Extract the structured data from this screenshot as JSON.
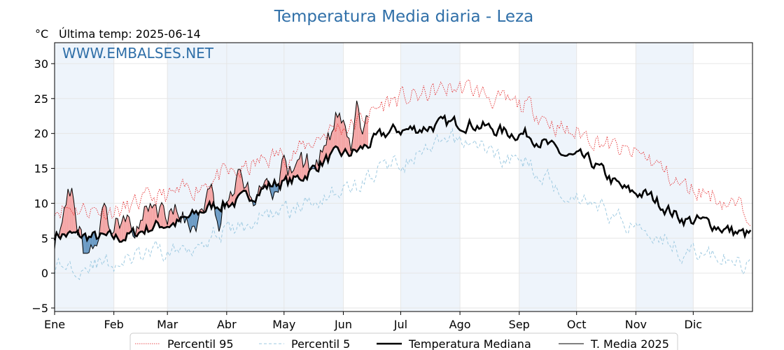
{
  "chart_data": {
    "type": "line",
    "title": "Temperatura Media diaria - Leza",
    "unit_label": "°C",
    "last_temp_label": "Última temp: 2025-06-14",
    "watermark": "WWW.EMBALSES.NET",
    "x_tick_labels": [
      "Ene",
      "Feb",
      "Mar",
      "Abr",
      "May",
      "Jun",
      "Jul",
      "Ago",
      "Sep",
      "Oct",
      "Nov",
      "Dic"
    ],
    "y_ticks": [
      -5,
      0,
      5,
      10,
      15,
      20,
      25,
      30
    ],
    "ylim": [
      -5.5,
      33
    ],
    "grid": true,
    "legend_position": "bottom-center",
    "colors": {
      "p95": "#e31a1c",
      "p5": "#9ecae1",
      "median": "#000000",
      "current": "#000000",
      "above_fill": "#f4a6a6",
      "below_fill": "#6a9ac4",
      "band": "#eef4fb",
      "title": "#2f6fa8"
    },
    "series": [
      {
        "name": "Percentil 95",
        "style": "dotted",
        "knots": [
          [
            0,
            9.5
          ],
          [
            31,
            9
          ],
          [
            59,
            11
          ],
          [
            90,
            14
          ],
          [
            120,
            17
          ],
          [
            151,
            21
          ],
          [
            181,
            25
          ],
          [
            212,
            26.5
          ],
          [
            243,
            24
          ],
          [
            273,
            20
          ],
          [
            304,
            17
          ],
          [
            334,
            12
          ],
          [
            364,
            9
          ]
        ],
        "noise": 1.3
      },
      {
        "name": "Percentil 5",
        "style": "dashed",
        "knots": [
          [
            0,
            1
          ],
          [
            31,
            1.5
          ],
          [
            59,
            3
          ],
          [
            90,
            6
          ],
          [
            120,
            9
          ],
          [
            151,
            12
          ],
          [
            181,
            16
          ],
          [
            212,
            19
          ],
          [
            243,
            16
          ],
          [
            273,
            11
          ],
          [
            304,
            7
          ],
          [
            334,
            3
          ],
          [
            364,
            1
          ]
        ],
        "noise": 1.2
      },
      {
        "name": "Temperatura Mediana",
        "style": "thick",
        "knots": [
          [
            0,
            5.5
          ],
          [
            31,
            5
          ],
          [
            59,
            7
          ],
          [
            90,
            10
          ],
          [
            120,
            13
          ],
          [
            151,
            17
          ],
          [
            181,
            20.5
          ],
          [
            212,
            21.5
          ],
          [
            243,
            20
          ],
          [
            273,
            16.5
          ],
          [
            304,
            11.5
          ],
          [
            334,
            7.5
          ],
          [
            364,
            5.5
          ]
        ],
        "noise": 0.8
      },
      {
        "name": "T. Media 2025",
        "style": "thin",
        "end_day": 164,
        "knots": [
          [
            0,
            5
          ],
          [
            6,
            10
          ],
          [
            9,
            12.5
          ],
          [
            12,
            7
          ],
          [
            16,
            3
          ],
          [
            21,
            5
          ],
          [
            26,
            8
          ],
          [
            31,
            7
          ],
          [
            38,
            9
          ],
          [
            44,
            6
          ],
          [
            50,
            10
          ],
          [
            56,
            9
          ],
          [
            60,
            8
          ],
          [
            66,
            9
          ],
          [
            71,
            6
          ],
          [
            76,
            8
          ],
          [
            82,
            11
          ],
          [
            86,
            8
          ],
          [
            92,
            12
          ],
          [
            98,
            14
          ],
          [
            104,
            11
          ],
          [
            110,
            13
          ],
          [
            116,
            12
          ],
          [
            120,
            15
          ],
          [
            124,
            14
          ],
          [
            130,
            16
          ],
          [
            136,
            15
          ],
          [
            141,
            18
          ],
          [
            145,
            20
          ],
          [
            148,
            22
          ],
          [
            151,
            20
          ],
          [
            155,
            17
          ],
          [
            158,
            23
          ],
          [
            161,
            21
          ],
          [
            164,
            22
          ]
        ],
        "noise": 1.6
      }
    ]
  }
}
